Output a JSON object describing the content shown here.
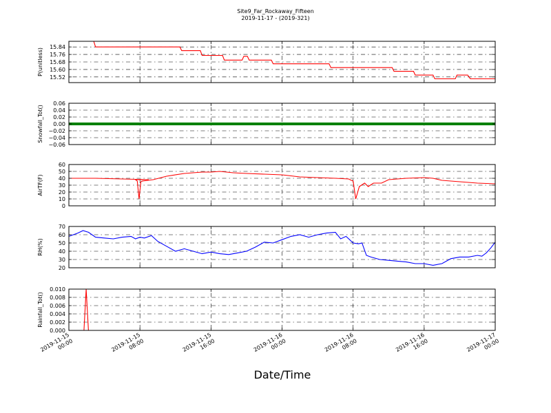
{
  "figure": {
    "title": "Site9_Far_Rockaway_Fifteen",
    "subtitle": "2019-11-17 - (2019-321)",
    "xlabel": "Date/Time",
    "x_ticks": [
      {
        "line1": "2019-11-15",
        "line2": "00:00",
        "hour": 0
      },
      {
        "line1": "2019-11-15",
        "line2": "08:00",
        "hour": 8
      },
      {
        "line1": "2019-11-15",
        "line2": "16:00",
        "hour": 16
      },
      {
        "line1": "2019-11-16",
        "line2": "00:00",
        "hour": 24
      },
      {
        "line1": "2019-11-16",
        "line2": "08:00",
        "hour": 32
      },
      {
        "line1": "2019-11-16",
        "line2": "16:00",
        "hour": 40
      },
      {
        "line1": "2019-11-17",
        "line2": "00:00",
        "hour": 48
      }
    ]
  },
  "chart_data": [
    {
      "type": "line",
      "ylabel": "P(unitless)",
      "ylim": [
        15.46,
        15.9
      ],
      "yticks": [
        "15.84",
        "15.76",
        "15.68",
        "15.60",
        "15.52"
      ],
      "ytick_values": [
        15.84,
        15.76,
        15.68,
        15.6,
        15.52
      ],
      "grid": true,
      "color": "#ff0000",
      "series": [
        {
          "x": [
            0,
            2.8,
            3.0,
            12.5,
            12.7,
            14.8,
            15.0,
            17.3,
            17.5,
            19.5,
            19.7,
            20.1,
            20.3,
            22.8,
            23.0,
            29.3,
            29.5,
            36.4,
            36.6,
            38.8,
            39.0,
            41.0,
            41.2,
            43.5,
            43.7,
            44.9,
            45.2,
            45.5,
            48.0
          ],
          "y": [
            15.9,
            15.9,
            15.84,
            15.84,
            15.8,
            15.8,
            15.75,
            15.75,
            15.7,
            15.7,
            15.74,
            15.74,
            15.7,
            15.7,
            15.66,
            15.66,
            15.62,
            15.62,
            15.58,
            15.58,
            15.54,
            15.54,
            15.5,
            15.5,
            15.54,
            15.54,
            15.5,
            15.5,
            15.5
          ]
        }
      ]
    },
    {
      "type": "line",
      "ylabel": "Snowfall_Tot()",
      "ylim": [
        -0.06,
        0.06
      ],
      "yticks": [
        "0.06",
        "0.04",
        "0.02",
        "0.00",
        "−0.02",
        "−0.04",
        "−0.06"
      ],
      "ytick_values": [
        0.06,
        0.04,
        0.02,
        0.0,
        -0.02,
        -0.04,
        -0.06
      ],
      "grid": true,
      "color": "#008000",
      "series": [
        {
          "x": [
            0,
            48
          ],
          "y": [
            0,
            0
          ]
        }
      ]
    },
    {
      "type": "line",
      "ylabel": "AirTF(F)",
      "ylim": [
        0,
        60
      ],
      "yticks": [
        "60",
        "50",
        "40",
        "30",
        "20",
        "10",
        "0"
      ],
      "ytick_values": [
        60,
        50,
        40,
        30,
        20,
        10,
        0
      ],
      "grid": true,
      "color": "#ff0000",
      "series": [
        {
          "x": [
            0,
            3,
            6,
            9,
            7.5,
            7.7,
            7.9,
            8.1,
            8.3,
            9.5,
            11,
            13,
            15,
            16,
            17,
            18.5,
            20,
            22,
            24,
            26,
            28,
            30,
            31.5,
            31.8,
            32.0,
            32.3,
            32.7,
            33.3,
            33.7,
            34.3,
            35.2,
            36.0,
            38,
            40,
            41,
            42,
            44,
            46,
            48
          ],
          "y": [
            40,
            40,
            39,
            38,
            38,
            36,
            10,
            35,
            36,
            38,
            43,
            47,
            49,
            49,
            50,
            48,
            47,
            46,
            45,
            42,
            41,
            40,
            39,
            37,
            36,
            10,
            28,
            33,
            28,
            33,
            33,
            38,
            40,
            41,
            40,
            37,
            35,
            33,
            32
          ]
        }
      ]
    },
    {
      "type": "line",
      "ylabel": "RH(%)",
      "ylim": [
        20,
        70
      ],
      "yticks": [
        "70",
        "60",
        "50",
        "40",
        "30",
        "20"
      ],
      "ytick_values": [
        70,
        60,
        50,
        40,
        30,
        20
      ],
      "grid": true,
      "color": "#0000ff",
      "series": [
        {
          "x": [
            0,
            1,
            1.6,
            2.2,
            3,
            4,
            5,
            6,
            7,
            7.5,
            8,
            8.5,
            9.3,
            10,
            11,
            12,
            13,
            14,
            15,
            16,
            17,
            18,
            19,
            20,
            21,
            22,
            23,
            24,
            25,
            26,
            27,
            28,
            29,
            30,
            30.6,
            31.2,
            32,
            32.6,
            33,
            33.5,
            34,
            35,
            36,
            37,
            38,
            39,
            40,
            41,
            42,
            43,
            44,
            45,
            46,
            46.5,
            47,
            47.5,
            48
          ],
          "y": [
            58,
            62,
            65,
            63,
            57,
            56,
            55,
            57,
            58,
            55,
            57,
            56,
            59,
            52,
            46,
            40,
            43,
            40,
            37,
            39,
            37,
            36,
            38,
            40,
            45,
            51,
            50,
            54,
            58,
            60,
            57,
            60,
            62,
            63,
            55,
            58,
            50,
            49,
            50,
            35,
            33,
            30,
            29,
            28,
            27,
            25,
            25,
            23,
            25,
            31,
            33,
            33,
            35,
            34,
            38,
            44,
            51
          ]
        }
      ]
    },
    {
      "type": "line",
      "ylabel": "Rainfall_Tot()",
      "ylim": [
        0,
        0.01
      ],
      "yticks": [
        "0.010",
        "0.008",
        "0.006",
        "0.004",
        "0.002",
        "0.000"
      ],
      "ytick_values": [
        0.01,
        0.008,
        0.006,
        0.004,
        0.002,
        0.0
      ],
      "grid": true,
      "color": "#ff0000",
      "series": [
        {
          "x": [
            0,
            1.7,
            1.95,
            2.2,
            48
          ],
          "y": [
            0,
            0,
            0.01,
            0,
            0
          ]
        }
      ]
    }
  ]
}
